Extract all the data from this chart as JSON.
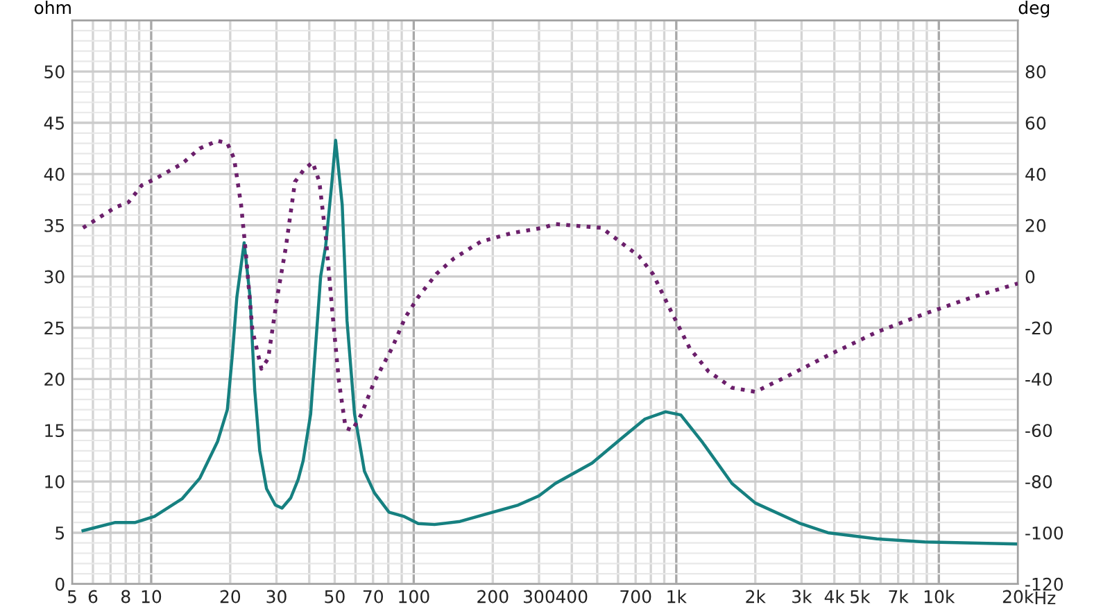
{
  "chart_data": {
    "type": "line",
    "ylabel": "ohm",
    "y2label": "deg",
    "log": "x",
    "grid": true,
    "legend": false,
    "xlim": [
      5,
      20000
    ],
    "xticks": [
      5,
      6,
      8,
      10,
      20,
      30,
      50,
      70,
      100,
      200,
      300,
      400,
      700,
      {
        "value": 1000,
        "label": "1k"
      },
      {
        "value": 2000,
        "label": "2k"
      },
      {
        "value": 3000,
        "label": "3k"
      },
      {
        "value": 4000,
        "label": "4k"
      },
      {
        "value": 5000,
        "label": "5k"
      },
      {
        "value": 7000,
        "label": "7k"
      },
      {
        "value": 10000,
        "label": "10k"
      },
      {
        "value": 20000,
        "label": "20k"
      }
    ],
    "xlabel": "Hz",
    "ylim": [
      0,
      55
    ],
    "yticks": [
      0,
      5,
      10,
      15,
      20,
      25,
      30,
      35,
      40,
      45,
      50
    ],
    "y2lim": [
      -120,
      100
    ],
    "y2ticks": [
      -120,
      -100,
      -80,
      -60,
      -40,
      -20,
      0,
      20,
      40,
      60,
      80
    ],
    "series": [
      {
        "color": "#168080",
        "line_style": "solid",
        "x": [
          5.5,
          7.3,
          8.7,
          10.3,
          13.1,
          15.3,
          17.9,
          19.5,
          20.4,
          21.2,
          22.6,
          23.8,
          24.8,
          25.9,
          27.5,
          29.7,
          31.5,
          34.0,
          36.3,
          37.9,
          40.5,
          44.2,
          46.2,
          48.7,
          50.4,
          53.4,
          55.7,
          59.5,
          64.9,
          70.8,
          80.5,
          91.6,
          104,
          120,
          150,
          200,
          250,
          300,
          346,
          478,
          625,
          760,
          910,
          1040,
          1260,
          1630,
          2000,
          2970,
          3780,
          5800,
          8850,
          20000
        ],
        "values": [
          5.2,
          6.0,
          6.0,
          6.6,
          8.3,
          10.3,
          13.9,
          17,
          22.5,
          28,
          33.3,
          28,
          18.9,
          13,
          9.3,
          7.7,
          7.4,
          8.4,
          10.2,
          12,
          16.6,
          30,
          33,
          39,
          43.3,
          37,
          25.7,
          16.6,
          11,
          8.9,
          7,
          6.6,
          5.9,
          5.8,
          6.1,
          7.0,
          7.7,
          8.6,
          9.8,
          11.8,
          14.3,
          16.1,
          16.8,
          16.5,
          13.8,
          9.8,
          7.9,
          5.9,
          5.0,
          4.4,
          4.1,
          3.9
        ]
      },
      {
        "color": "#6b1f6b",
        "axis": "y2",
        "line_style": "dotted",
        "x": [
          5.5,
          7.3,
          8.2,
          9.2,
          10.3,
          13.1,
          15.3,
          17.9,
          19.5,
          20.7,
          22.0,
          22.9,
          24.3,
          26.3,
          27.9,
          30.2,
          32.6,
          35.3,
          38.1,
          41.2,
          43.7,
          46.3,
          49.0,
          51.9,
          55.0,
          58.3,
          63.0,
          70.8,
          82.6,
          92.8,
          104,
          122,
          142,
          180,
          237,
          310,
          346,
          520,
          720,
          815,
          956,
          1125,
          1325,
          1630,
          2000,
          2640,
          3780,
          5800,
          8850,
          13400,
          20000
        ],
        "values": [
          19,
          27,
          29,
          35.6,
          38,
          44,
          50,
          53,
          52,
          46,
          28,
          10,
          -21,
          -36,
          -32,
          -8,
          11.6,
          37,
          41.6,
          44.6,
          37,
          15,
          -14,
          -41,
          -59,
          -60,
          -54,
          -41,
          -28,
          -16,
          -8,
          1,
          7,
          13.6,
          17,
          19,
          20.5,
          19,
          8,
          1,
          -13.6,
          -28,
          -37,
          -43.4,
          -45,
          -39,
          -30.8,
          -21.7,
          -14.5,
          -8.1,
          -2.7
        ]
      }
    ]
  }
}
